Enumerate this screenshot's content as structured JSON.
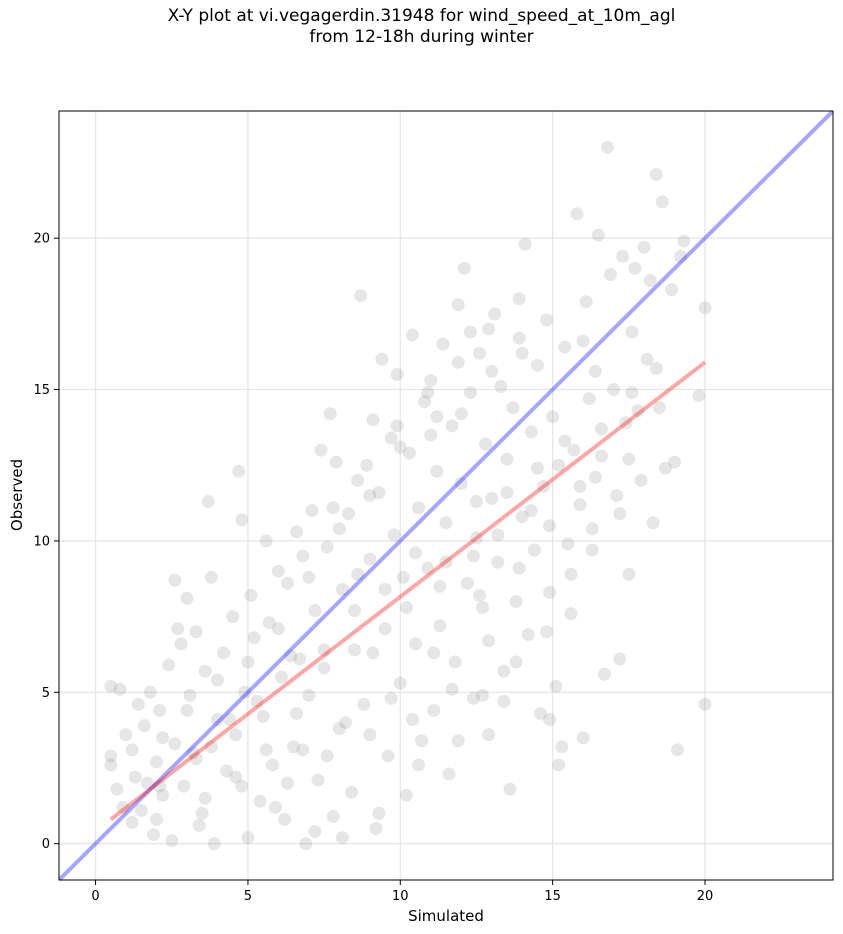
{
  "chart_data": {
    "type": "scatter",
    "title_lines": [
      "X-Y plot at vi.vegagerdin.31948 for wind_speed_at_10m_agl",
      "from 12-18h during winter"
    ],
    "xlabel": "Simulated",
    "ylabel": "Observed",
    "xlim": [
      -1.2,
      24.2
    ],
    "ylim": [
      -1.2,
      24.2
    ],
    "xticks": [
      0,
      5,
      10,
      15,
      20
    ],
    "yticks": [
      0,
      5,
      10,
      15,
      20
    ],
    "grid": true,
    "colors": {
      "points": "#808080",
      "identity_line": "#0000ff",
      "fit_line": "#ff0000"
    },
    "series": [
      {
        "values": [
          [
            0.5,
            5.2
          ],
          [
            0.8,
            5.1
          ],
          [
            0.5,
            2.9
          ],
          [
            0.5,
            2.6
          ],
          [
            0.7,
            1.8
          ],
          [
            0.9,
            1.2
          ],
          [
            1.0,
            3.6
          ],
          [
            1.2,
            3.1
          ],
          [
            1.3,
            2.2
          ],
          [
            1.4,
            4.6
          ],
          [
            1.5,
            1.1
          ],
          [
            1.6,
            3.9
          ],
          [
            1.7,
            2.0
          ],
          [
            1.8,
            5.0
          ],
          [
            1.9,
            0.3
          ],
          [
            2.0,
            2.7
          ],
          [
            2.1,
            4.4
          ],
          [
            2.2,
            1.6
          ],
          [
            2.4,
            5.9
          ],
          [
            2.5,
            0.1
          ],
          [
            2.6,
            8.7
          ],
          [
            2.6,
            3.3
          ],
          [
            2.7,
            7.1
          ],
          [
            2.8,
            6.6
          ],
          [
            2.9,
            1.9
          ],
          [
            3.0,
            8.1
          ],
          [
            3.1,
            4.9
          ],
          [
            3.2,
            3.0
          ],
          [
            3.3,
            7.0
          ],
          [
            3.4,
            0.6
          ],
          [
            3.6,
            5.7
          ],
          [
            3.7,
            11.3
          ],
          [
            3.8,
            8.8
          ],
          [
            3.9,
            0.0
          ],
          [
            4.0,
            4.1
          ],
          [
            4.2,
            6.3
          ],
          [
            4.3,
            2.4
          ],
          [
            4.5,
            7.5
          ],
          [
            4.6,
            3.6
          ],
          [
            4.7,
            12.3
          ],
          [
            4.8,
            10.7
          ],
          [
            4.9,
            5.0
          ],
          [
            5.0,
            0.2
          ],
          [
            5.1,
            8.2
          ],
          [
            5.2,
            6.8
          ],
          [
            5.4,
            1.4
          ],
          [
            5.5,
            4.2
          ],
          [
            5.6,
            10.0
          ],
          [
            5.7,
            7.3
          ],
          [
            5.8,
            2.6
          ],
          [
            6.0,
            9.0
          ],
          [
            6.1,
            5.5
          ],
          [
            6.2,
            0.8
          ],
          [
            6.3,
            8.6
          ],
          [
            6.5,
            3.2
          ],
          [
            6.6,
            10.3
          ],
          [
            6.7,
            6.1
          ],
          [
            6.8,
            9.5
          ],
          [
            6.9,
            0.0
          ],
          [
            7.0,
            4.9
          ],
          [
            7.1,
            11.0
          ],
          [
            7.2,
            7.7
          ],
          [
            7.3,
            2.1
          ],
          [
            7.4,
            13.0
          ],
          [
            7.5,
            5.8
          ],
          [
            7.6,
            9.8
          ],
          [
            7.7,
            14.2
          ],
          [
            7.8,
            0.9
          ],
          [
            7.9,
            12.6
          ],
          [
            8.0,
            3.8
          ],
          [
            8.1,
            8.4
          ],
          [
            8.3,
            10.9
          ],
          [
            8.4,
            1.7
          ],
          [
            8.5,
            6.4
          ],
          [
            8.6,
            12.0
          ],
          [
            8.7,
            18.1
          ],
          [
            8.8,
            4.6
          ],
          [
            9.0,
            9.4
          ],
          [
            9.1,
            14.0
          ],
          [
            9.2,
            0.5
          ],
          [
            9.3,
            11.6
          ],
          [
            9.4,
            16.0
          ],
          [
            9.5,
            7.1
          ],
          [
            9.6,
            2.9
          ],
          [
            9.7,
            13.4
          ],
          [
            9.8,
            10.2
          ],
          [
            9.9,
            15.5
          ],
          [
            10.0,
            5.3
          ],
          [
            10.1,
            8.8
          ],
          [
            10.2,
            1.6
          ],
          [
            10.3,
            12.9
          ],
          [
            10.4,
            16.8
          ],
          [
            10.5,
            6.6
          ],
          [
            10.6,
            11.1
          ],
          [
            10.7,
            3.4
          ],
          [
            10.8,
            14.6
          ],
          [
            10.9,
            9.1
          ],
          [
            11.0,
            15.3
          ],
          [
            11.1,
            4.4
          ],
          [
            11.2,
            12.3
          ],
          [
            11.3,
            7.2
          ],
          [
            11.4,
            16.5
          ],
          [
            11.5,
            10.6
          ],
          [
            11.6,
            2.3
          ],
          [
            11.7,
            13.8
          ],
          [
            11.8,
            6.0
          ],
          [
            11.9,
            17.8
          ],
          [
            12.0,
            11.9
          ],
          [
            12.1,
            19.0
          ],
          [
            12.2,
            8.6
          ],
          [
            12.3,
            14.9
          ],
          [
            12.4,
            4.8
          ],
          [
            12.5,
            10.1
          ],
          [
            12.6,
            16.2
          ],
          [
            12.7,
            7.8
          ],
          [
            12.8,
            13.2
          ],
          [
            12.9,
            3.6
          ],
          [
            13.0,
            11.4
          ],
          [
            13.1,
            17.5
          ],
          [
            13.2,
            9.3
          ],
          [
            13.3,
            15.1
          ],
          [
            13.4,
            5.7
          ],
          [
            13.5,
            12.7
          ],
          [
            13.6,
            1.8
          ],
          [
            13.7,
            14.4
          ],
          [
            13.8,
            8.0
          ],
          [
            13.9,
            16.7
          ],
          [
            14.0,
            10.8
          ],
          [
            14.1,
            19.8
          ],
          [
            14.2,
            6.9
          ],
          [
            14.3,
            13.6
          ],
          [
            14.4,
            9.7
          ],
          [
            14.5,
            15.8
          ],
          [
            14.6,
            4.3
          ],
          [
            14.7,
            11.8
          ],
          [
            14.8,
            17.3
          ],
          [
            14.9,
            8.3
          ],
          [
            15.0,
            14.1
          ],
          [
            15.1,
            5.2
          ],
          [
            15.2,
            12.5
          ],
          [
            15.3,
            3.2
          ],
          [
            15.4,
            16.4
          ],
          [
            15.5,
            9.9
          ],
          [
            15.6,
            7.6
          ],
          [
            15.7,
            13.0
          ],
          [
            15.8,
            20.8
          ],
          [
            15.9,
            11.2
          ],
          [
            16.0,
            3.5
          ],
          [
            16.1,
            17.9
          ],
          [
            16.2,
            14.7
          ],
          [
            16.3,
            10.4
          ],
          [
            16.4,
            15.6
          ],
          [
            16.5,
            20.1
          ],
          [
            16.6,
            12.8
          ],
          [
            16.7,
            5.6
          ],
          [
            16.8,
            23.0
          ],
          [
            16.9,
            18.8
          ],
          [
            17.0,
            15.0
          ],
          [
            17.1,
            11.5
          ],
          [
            17.2,
            6.1
          ],
          [
            17.3,
            19.4
          ],
          [
            17.4,
            13.9
          ],
          [
            17.5,
            8.9
          ],
          [
            17.6,
            16.9
          ],
          [
            17.7,
            19.0
          ],
          [
            17.8,
            14.3
          ],
          [
            17.9,
            12.0
          ],
          [
            18.0,
            19.7
          ],
          [
            18.1,
            16.0
          ],
          [
            18.2,
            18.6
          ],
          [
            18.3,
            10.6
          ],
          [
            18.4,
            22.1
          ],
          [
            18.5,
            14.4
          ],
          [
            18.6,
            21.2
          ],
          [
            18.7,
            12.4
          ],
          [
            18.9,
            18.3
          ],
          [
            19.0,
            12.6
          ],
          [
            19.1,
            3.1
          ],
          [
            19.2,
            19.4
          ],
          [
            19.3,
            19.9
          ],
          [
            19.8,
            14.8
          ],
          [
            20.0,
            17.7
          ],
          [
            20.0,
            4.6
          ],
          [
            3.3,
            2.8
          ],
          [
            4.4,
            4.1
          ],
          [
            5.3,
            4.7
          ],
          [
            6.4,
            6.2
          ],
          [
            7.5,
            6.4
          ],
          [
            8.5,
            7.7
          ],
          [
            9.5,
            8.4
          ],
          [
            10.5,
            9.6
          ],
          [
            11.5,
            9.3
          ],
          [
            12.5,
            11.3
          ],
          [
            13.5,
            11.6
          ],
          [
            14.5,
            12.4
          ],
          [
            2.1,
            1.9
          ],
          [
            3.8,
            3.2
          ],
          [
            6.8,
            3.1
          ],
          [
            8.2,
            4.0
          ],
          [
            9.7,
            4.8
          ],
          [
            11.1,
            6.3
          ],
          [
            12.6,
            8.2
          ],
          [
            13.9,
            9.1
          ],
          [
            14.9,
            10.5
          ],
          [
            15.9,
            11.8
          ],
          [
            16.6,
            13.7
          ],
          [
            17.6,
            14.9
          ],
          [
            18.4,
            15.7
          ],
          [
            10.0,
            13.1
          ],
          [
            11.0,
            13.5
          ],
          [
            12.0,
            14.2
          ],
          [
            13.0,
            15.6
          ],
          [
            14.0,
            16.2
          ],
          [
            6.0,
            7.1
          ],
          [
            7.0,
            8.8
          ],
          [
            8.0,
            10.4
          ],
          [
            9.0,
            11.5
          ],
          [
            4.0,
            5.4
          ],
          [
            5.0,
            6.0
          ],
          [
            3.0,
            4.4
          ],
          [
            2.2,
            3.5
          ],
          [
            1.2,
            0.7
          ],
          [
            2.0,
            0.8
          ],
          [
            3.5,
            1.0
          ],
          [
            4.8,
            1.9
          ],
          [
            6.3,
            2.0
          ],
          [
            7.2,
            0.4
          ],
          [
            8.1,
            0.2
          ],
          [
            9.3,
            1.0
          ],
          [
            10.6,
            2.6
          ],
          [
            11.7,
            5.1
          ],
          [
            12.7,
            4.9
          ],
          [
            13.8,
            6.0
          ],
          [
            14.8,
            7.0
          ],
          [
            15.6,
            8.9
          ],
          [
            16.3,
            9.7
          ],
          [
            17.2,
            10.9
          ],
          [
            15.2,
            2.6
          ],
          [
            14.9,
            4.1
          ],
          [
            13.4,
            4.7
          ],
          [
            12.9,
            6.7
          ],
          [
            11.9,
            3.4
          ],
          [
            10.4,
            4.1
          ],
          [
            9.1,
            6.3
          ],
          [
            8.6,
            8.9
          ],
          [
            7.8,
            11.1
          ],
          [
            8.9,
            12.5
          ],
          [
            9.9,
            13.8
          ],
          [
            10.9,
            14.9
          ],
          [
            11.9,
            15.9
          ],
          [
            12.9,
            17.0
          ],
          [
            13.9,
            18.0
          ],
          [
            12.3,
            16.9
          ],
          [
            11.2,
            14.1
          ],
          [
            6.6,
            4.3
          ],
          [
            5.6,
            3.1
          ],
          [
            4.6,
            2.2
          ],
          [
            3.6,
            1.5
          ],
          [
            5.9,
            1.2
          ],
          [
            7.6,
            2.9
          ],
          [
            9.0,
            3.6
          ],
          [
            10.2,
            7.8
          ],
          [
            11.3,
            8.5
          ],
          [
            12.4,
            9.5
          ],
          [
            13.2,
            10.2
          ],
          [
            14.3,
            11.0
          ],
          [
            15.4,
            13.3
          ],
          [
            16.4,
            12.1
          ],
          [
            17.5,
            12.7
          ],
          [
            16.0,
            16.6
          ]
        ]
      }
    ],
    "identity_line": {
      "x": [
        -1.2,
        24.2
      ],
      "y": [
        -1.2,
        24.2
      ]
    },
    "fit_line": {
      "x": [
        0.5,
        20.0
      ],
      "y": [
        0.8,
        15.9
      ]
    }
  }
}
